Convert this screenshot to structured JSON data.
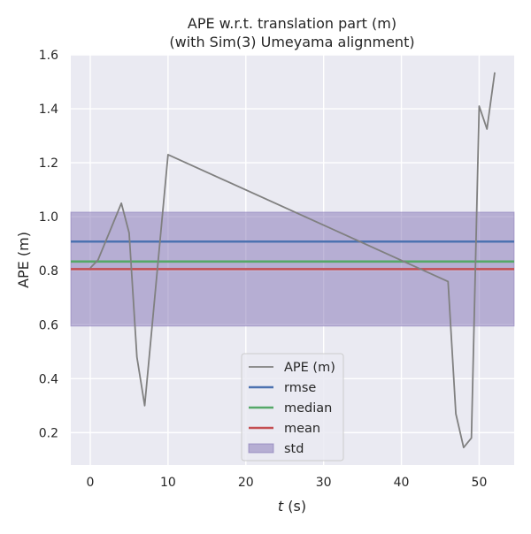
{
  "chart_data": {
    "type": "line",
    "title": "APE w.r.t. translation part (m)",
    "subtitle": "(with Sim(3) Umeyama alignment)",
    "xlabel_var": "t",
    "xlabel_unit": " (s)",
    "ylabel": "APE (m)",
    "xlim": [
      -2.5,
      54.5
    ],
    "ylim": [
      0.08,
      1.6
    ],
    "xticks": [
      0,
      10,
      20,
      30,
      40,
      50
    ],
    "yticks": [
      0.2,
      0.4,
      0.6,
      0.8,
      1.0,
      1.2,
      1.4,
      1.6
    ],
    "ytick_labels": [
      "0.2",
      "0.4",
      "0.6",
      "0.8",
      "1.0",
      "1.2",
      "1.4",
      "1.6"
    ],
    "grid": true,
    "series": [
      {
        "name": "APE (m)",
        "color": "#808080",
        "x": [
          0,
          1,
          4,
          5,
          6,
          7,
          10,
          46,
          47,
          48,
          49,
          50,
          51,
          52
        ],
        "y": [
          0.81,
          0.84,
          1.05,
          0.94,
          0.48,
          0.3,
          1.23,
          0.76,
          0.27,
          0.145,
          0.18,
          1.41,
          1.325,
          1.535
        ]
      }
    ],
    "reference_lines": [
      {
        "name": "rmse",
        "value": 0.908,
        "color": "#4C72B0"
      },
      {
        "name": "median",
        "value": 0.834,
        "color": "#55A868"
      },
      {
        "name": "mean",
        "value": 0.806,
        "color": "#C44E52"
      }
    ],
    "std_band": {
      "name": "std",
      "lower": 0.595,
      "upper": 1.017,
      "color": "#8172B3"
    },
    "legend_location": "lower center"
  }
}
